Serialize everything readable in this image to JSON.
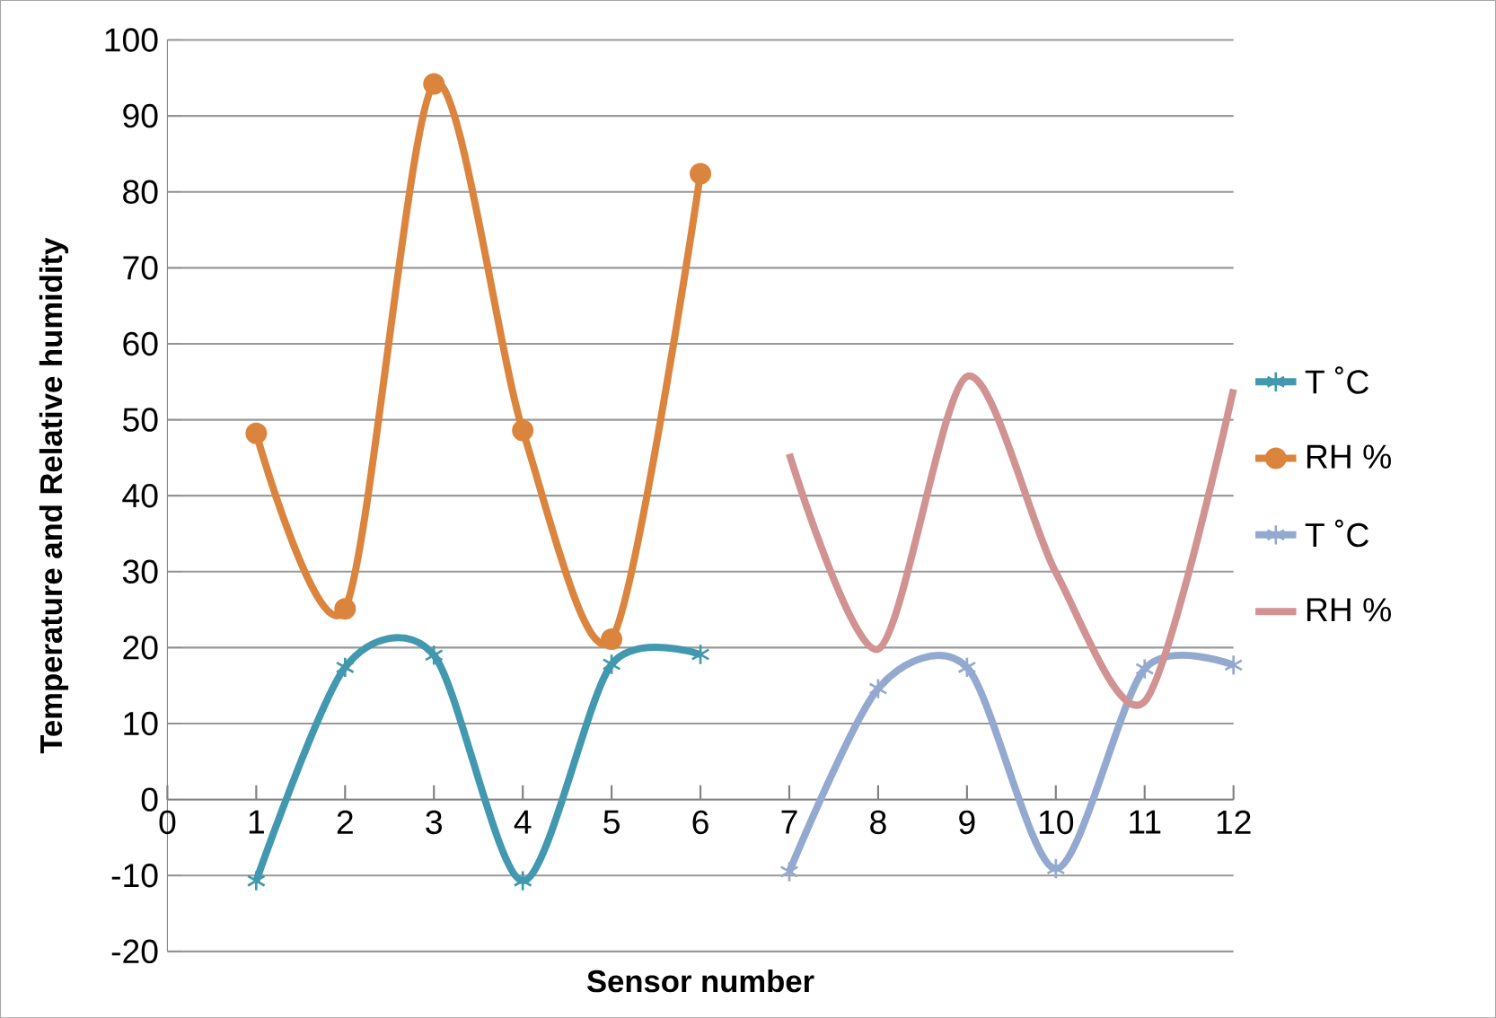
{
  "chart_data": {
    "type": "line",
    "xlabel": "Sensor number",
    "ylabel": "Temperature and Relative humidity",
    "xlim": [
      0,
      12
    ],
    "xticks": [
      0,
      1,
      2,
      3,
      4,
      5,
      6,
      7,
      8,
      9,
      10,
      11,
      12
    ],
    "ylim": [
      -20,
      100
    ],
    "yticks": [
      -20,
      -10,
      0,
      10,
      20,
      30,
      40,
      50,
      60,
      70,
      80,
      90,
      100
    ],
    "grid": "y",
    "legend": "right",
    "line_style": "solid",
    "series": [
      {
        "name": "T ˚C",
        "color": "#4198af",
        "marker": "cross",
        "x": [
          1,
          2,
          3,
          4,
          5,
          6
        ],
        "values": [
          -10.7,
          17.4,
          19,
          -10.7,
          17.8,
          19.1
        ]
      },
      {
        "name": "RH %",
        "color": "#db843d",
        "marker": "circle",
        "x": [
          1,
          2,
          3,
          4,
          5,
          6
        ],
        "values": [
          48.2,
          25.1,
          94.2,
          48.6,
          21.1,
          82.4
        ]
      },
      {
        "name": "T ˚C",
        "color": "#93a9cf",
        "marker": "cross",
        "x": [
          7,
          8,
          9,
          10,
          11,
          12
        ],
        "values": [
          -9.5,
          14.6,
          17.4,
          -9.1,
          17.2,
          17.7
        ]
      },
      {
        "name": "RH %",
        "color": "#d09392",
        "marker": "none",
        "x": [
          7,
          8,
          9,
          10,
          11,
          12
        ],
        "values": [
          45.5,
          19.8,
          55.7,
          29.9,
          12.9,
          54
        ]
      }
    ]
  }
}
